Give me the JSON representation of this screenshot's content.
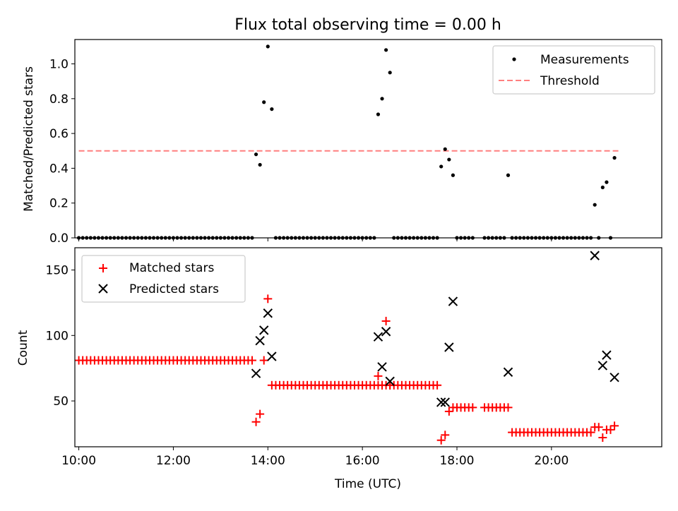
{
  "chart_data": [
    {
      "type": "scatter",
      "title": "Flux total observing time = 0.00 h",
      "ylabel": "Matched/Predicted stars",
      "xlabel": "",
      "xlim": [
        "09:55",
        "22:20"
      ],
      "ylim": [
        0,
        1.14
      ],
      "yticks": [
        "0.0",
        "0.2",
        "0.4",
        "0.6",
        "0.8",
        "1.0"
      ],
      "legend": {
        "placement": "top-right",
        "entries": [
          "Measurements",
          "Threshold"
        ]
      },
      "threshold": {
        "name": "Threshold",
        "y": 0.5,
        "x_range": [
          "10:00",
          "21:25"
        ],
        "color": "#ff7f7f"
      },
      "series": [
        {
          "name": "Measurements",
          "color": "#000000",
          "points": [
            [
              "13:45",
              0.48
            ],
            [
              "13:50",
              0.42
            ],
            [
              "13:55",
              0.78
            ],
            [
              "14:00",
              1.1
            ],
            [
              "14:05",
              0.74
            ],
            [
              "16:20",
              0.71
            ],
            [
              "16:25",
              0.8
            ],
            [
              "16:30",
              1.08
            ],
            [
              "16:35",
              0.95
            ],
            [
              "17:40",
              0.41
            ],
            [
              "17:45",
              0.51
            ],
            [
              "17:50",
              0.45
            ],
            [
              "17:55",
              0.36
            ],
            [
              "19:05",
              0.36
            ],
            [
              "20:55",
              0.19
            ],
            [
              "21:05",
              0.29
            ],
            [
              "21:10",
              0.32
            ],
            [
              "21:20",
              0.46
            ]
          ],
          "zero_runs": [
            [
              "10:00",
              "13:40",
              5
            ],
            [
              "14:10",
              "16:15",
              5
            ],
            [
              "16:40",
              "17:35",
              5
            ],
            [
              "18:00",
              "18:20",
              5
            ],
            [
              "18:35",
              "19:00",
              5
            ],
            [
              "19:10",
              "20:50",
              5
            ],
            [
              "21:00",
              "21:00",
              5
            ],
            [
              "21:15",
              "21:15",
              5
            ]
          ]
        }
      ]
    },
    {
      "type": "scatter",
      "title": "",
      "xlabel": "Time (UTC)",
      "ylabel": "Count",
      "xlim": [
        "09:55",
        "22:20"
      ],
      "ylim": [
        15,
        167
      ],
      "xticks": [
        "10:00",
        "12:00",
        "14:00",
        "16:00",
        "18:00",
        "20:00"
      ],
      "yticks": [
        "50",
        "100",
        "150"
      ],
      "legend": {
        "placement": "top-left",
        "entries": [
          "Matched stars",
          "Predicted stars"
        ]
      },
      "series": [
        {
          "name": "Matched stars",
          "marker": "plus",
          "color": "#ff0000",
          "runs": [
            [
              "10:00",
              "13:40",
              5,
              81
            ],
            [
              "14:10",
              "17:35",
              5,
              62
            ],
            [
              "18:00",
              "18:20",
              5,
              45
            ],
            [
              "18:35",
              "19:05",
              5,
              45
            ],
            [
              "19:10",
              "20:50",
              5,
              26
            ]
          ],
          "points": [
            [
              "13:45",
              34
            ],
            [
              "13:50",
              40
            ],
            [
              "13:55",
              81
            ],
            [
              "14:00",
              128
            ],
            [
              "14:05",
              62
            ],
            [
              "16:20",
              69
            ],
            [
              "16:25",
              62
            ],
            [
              "16:30",
              111
            ],
            [
              "16:35",
              62
            ],
            [
              "17:40",
              20
            ],
            [
              "17:45",
              24
            ],
            [
              "17:50",
              42
            ],
            [
              "17:55",
              45
            ],
            [
              "20:55",
              30
            ],
            [
              "21:00",
              30
            ],
            [
              "21:05",
              22
            ],
            [
              "21:10",
              28
            ],
            [
              "21:15",
              28
            ],
            [
              "21:20",
              31
            ]
          ]
        },
        {
          "name": "Predicted stars",
          "marker": "x",
          "color": "#000000",
          "points": [
            [
              "13:45",
              71
            ],
            [
              "13:50",
              96
            ],
            [
              "13:55",
              104
            ],
            [
              "14:00",
              117
            ],
            [
              "14:05",
              84
            ],
            [
              "16:20",
              99
            ],
            [
              "16:25",
              76
            ],
            [
              "16:30",
              103
            ],
            [
              "16:35",
              65
            ],
            [
              "17:40",
              49
            ],
            [
              "17:45",
              49
            ],
            [
              "17:50",
              91
            ],
            [
              "17:55",
              126
            ],
            [
              "19:05",
              72
            ],
            [
              "20:55",
              161
            ],
            [
              "21:05",
              77
            ],
            [
              "21:10",
              85
            ],
            [
              "21:20",
              68
            ]
          ]
        }
      ]
    }
  ]
}
